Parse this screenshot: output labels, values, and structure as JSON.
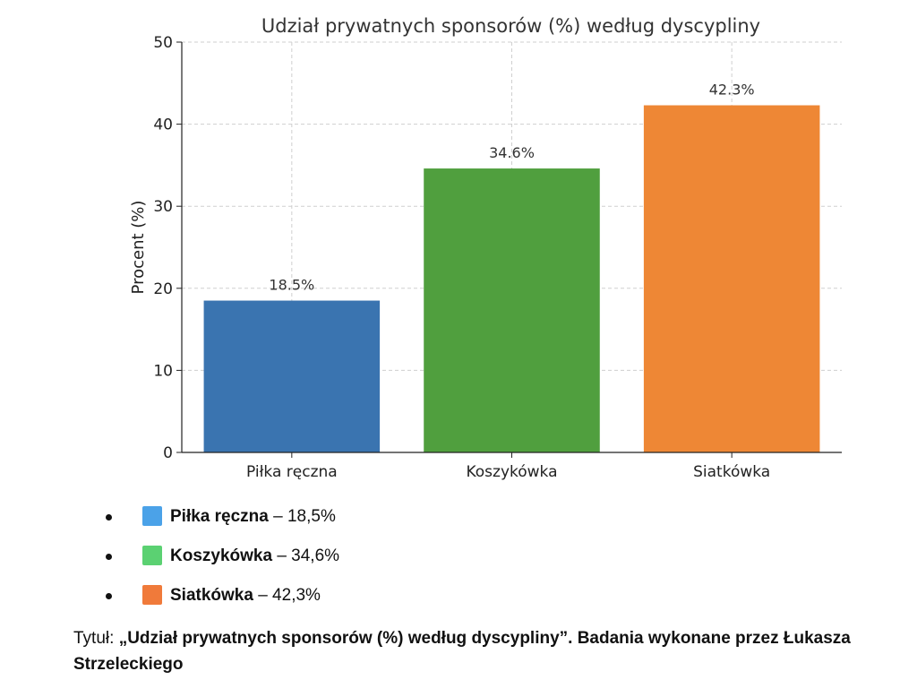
{
  "chart_data": {
    "type": "bar",
    "title": "Udział prywatnych sponsorów (%) według dyscypliny",
    "xlabel": "",
    "ylabel": "Procent (%)",
    "categories": [
      "Piłka ręczna",
      "Koszykówka",
      "Siatkówka"
    ],
    "values": [
      18.5,
      34.6,
      42.3
    ],
    "value_labels": [
      "18.5%",
      "34.6%",
      "42.3%"
    ],
    "colors": [
      "#3a74b0",
      "#509f3e",
      "#ee8735"
    ],
    "ylim": [
      0,
      50
    ],
    "yticks": [
      0,
      10,
      20,
      30,
      40,
      50
    ],
    "grid": true,
    "legend": "none"
  },
  "legend_list": [
    {
      "label": "Piłka ręczna",
      "value": " – 18,5%",
      "color": "#4ba2e8"
    },
    {
      "label": "Koszykówka",
      "value": " – 34,6%",
      "color": "#5bd172"
    },
    {
      "label": "Siatkówka",
      "value": " – 42,3%",
      "color": "#f07a3a"
    }
  ],
  "caption": {
    "prefix": "Tytuł: ",
    "text": "„Udział prywatnych sponsorów (%) według dyscypliny”. Badania wykonane przez Łukasza Strzeleckiego"
  }
}
